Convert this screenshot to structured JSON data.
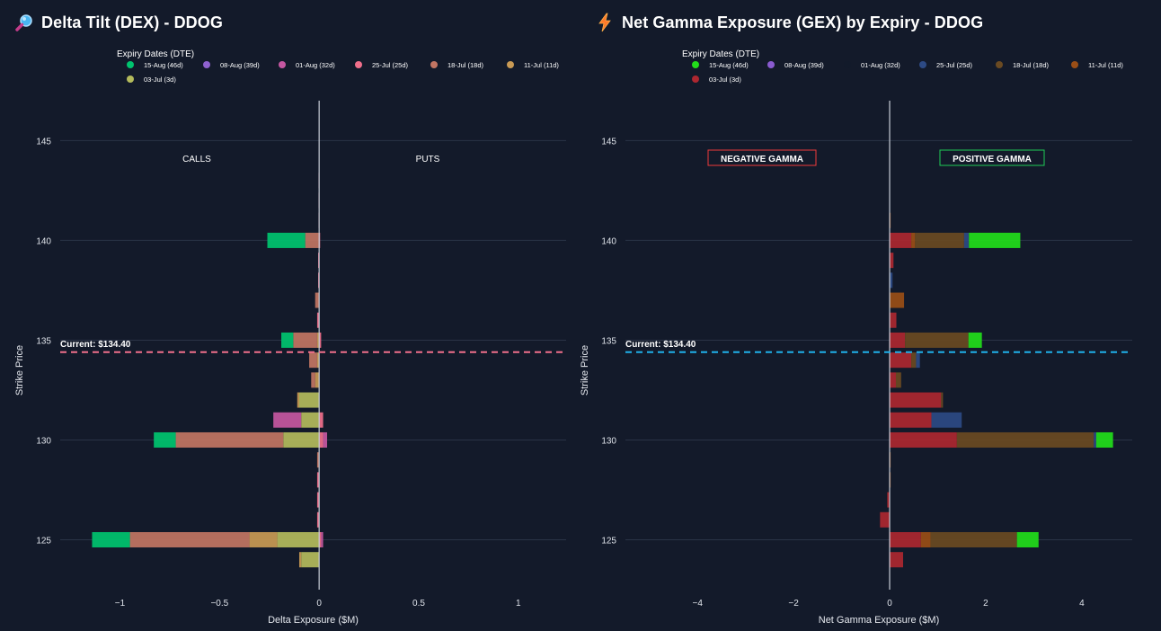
{
  "panels": {
    "dex": {
      "title": "Delta Tilt (DEX) - DDOG",
      "icon": "magnifier-icon"
    },
    "gex": {
      "title": "Net Gamma Exposure (GEX) by Expiry - DDOG",
      "icon": "lightning-icon"
    }
  },
  "chart_data": [
    {
      "type": "bar",
      "orientation": "horizontal",
      "stacked": true,
      "title": "Delta Tilt (DEX) - DDOG",
      "xlabel": "Delta Exposure ($M)",
      "ylabel": "Strike Price",
      "xlim": [
        -1.3,
        1.24
      ],
      "ylim": [
        122.5,
        147
      ],
      "xticks": [
        -1,
        -0.5,
        0,
        0.5,
        1
      ],
      "xtick_labels": [
        "−1",
        "−0.5",
        "0",
        "0.5",
        "1"
      ],
      "yticks": [
        125,
        130,
        135,
        140,
        145
      ],
      "legend_title": "Expiry Dates (DTE)",
      "legend_position": "top",
      "legend": [
        "15-Aug (46d)",
        "08-Aug (39d)",
        "01-Aug (32d)",
        "25-Jul (25d)",
        "18-Jul (18d)",
        "11-Jul (11d)",
        "03-Jul (3d)"
      ],
      "colors": {
        "15-Aug (46d)": "#00c46f",
        "08-Aug (39d)": "#8f62cf",
        "01-Aug (32d)": "#c557a1",
        "25-Jul (25d)": "#f06f8b",
        "18-Jul (18d)": "#c27563",
        "11-Jul (11d)": "#c99a54",
        "03-Jul (3d)": "#b4bb5c"
      },
      "annotations": [
        "CALLS",
        "PUTS"
      ],
      "current_price_label": "Current: $134.40",
      "current_price": 134.4,
      "current_line_color": "#f06f8b",
      "strikes": [
        {
          "strike": 124.0,
          "values": {
            "03-Jul (3d)": -0.09,
            "11-Jul (11d)": -0.01
          }
        },
        {
          "strike": 125.0,
          "values": {
            "15-Aug (46d)": -0.19,
            "18-Jul (18d)": -0.6,
            "11-Jul (11d)": -0.14,
            "03-Jul (3d)": -0.21,
            "25-Jul (25d)": 0.01,
            "01-Aug (32d)": 0.01
          }
        },
        {
          "strike": 126.0,
          "values": {
            "25-Jul (25d)": -0.01
          }
        },
        {
          "strike": 127.0,
          "values": {
            "25-Jul (25d)": -0.01
          }
        },
        {
          "strike": 128.0,
          "values": {
            "25-Jul (25d)": -0.01
          }
        },
        {
          "strike": 129.0,
          "values": {
            "18-Jul (18d)": -0.01
          }
        },
        {
          "strike": 130.0,
          "values": {
            "15-Aug (46d)": -0.11,
            "18-Jul (18d)": -0.54,
            "03-Jul (3d)": -0.18,
            "25-Jul (25d)": 0.02,
            "01-Aug (32d)": 0.02
          }
        },
        {
          "strike": 131.0,
          "values": {
            "01-Aug (32d)": -0.14,
            "03-Jul (3d)": -0.09,
            "25-Jul (25d)": 0.02
          }
        },
        {
          "strike": 132.0,
          "values": {
            "03-Jul (3d)": -0.1,
            "11-Jul (11d)": -0.01
          }
        },
        {
          "strike": 133.0,
          "values": {
            "18-Jul (18d)": -0.02,
            "11-Jul (11d)": -0.02
          }
        },
        {
          "strike": 134.0,
          "values": {
            "18-Jul (18d)": -0.04,
            "11-Jul (11d)": -0.01
          }
        },
        {
          "strike": 135.0,
          "values": {
            "15-Aug (46d)": -0.06,
            "18-Jul (18d)": -0.12,
            "11-Jul (11d)": -0.01,
            "25-Jul (25d)": 0.01
          }
        },
        {
          "strike": 136.0,
          "values": {
            "25-Jul (25d)": -0.01
          }
        },
        {
          "strike": 137.0,
          "values": {
            "18-Jul (18d)": -0.02
          }
        },
        {
          "strike": 138.0,
          "values": {
            "25-Jul (25d)": -0.005
          }
        },
        {
          "strike": 139.0,
          "values": {
            "25-Jul (25d)": -0.005
          }
        },
        {
          "strike": 140.0,
          "values": {
            "15-Aug (46d)": -0.19,
            "18-Jul (18d)": -0.07,
            "25-Jul (25d)": 0.005
          }
        },
        {
          "strike": 141.0,
          "values": {
            "25-Jul (25d)": -0.003
          }
        },
        {
          "strike": 142.0,
          "values": {
            "25-Jul (25d)": -0.003
          }
        },
        {
          "strike": 143.0,
          "values": {
            "25-Jul (25d)": -0.003
          }
        }
      ]
    },
    {
      "type": "bar",
      "orientation": "horizontal",
      "stacked": true,
      "title": "Net Gamma Exposure (GEX) by Expiry - DDOG",
      "xlabel": "Net Gamma Exposure ($M)",
      "ylabel": "Strike Price",
      "xlim": [
        -5.5,
        5.05
      ],
      "ylim": [
        122.5,
        147
      ],
      "xticks": [
        -4,
        -2,
        0,
        2,
        4
      ],
      "xtick_labels": [
        "−4",
        "−2",
        "0",
        "2",
        "4"
      ],
      "yticks": [
        125,
        130,
        135,
        140,
        145
      ],
      "legend_title": "Expiry Dates (DTE)",
      "legend_position": "top",
      "legend": [
        "15-Aug (46d)",
        "08-Aug (39d)",
        "01-Aug (32d)",
        "25-Jul (25d)",
        "18-Jul (18d)",
        "11-Jul (11d)",
        "03-Jul (3d)"
      ],
      "colors": {
        "15-Aug (46d)": "#22dd1a",
        "08-Aug (39d)": "#8a5bd0",
        "01-Aug (32d)": "#121a2a",
        "25-Jul (25d)": "#2d4a84",
        "18-Jul (18d)": "#6a4a22",
        "11-Jul (11d)": "#9a4e16",
        "03-Jul (3d)": "#ad2730"
      },
      "annotations": [
        "NEGATIVE GAMMA",
        "POSITIVE GAMMA"
      ],
      "annotation_colors": [
        "#ef3b3b",
        "#1fcc55"
      ],
      "current_price_label": "Current: $134.40",
      "current_price": 134.4,
      "current_line_color": "#1fb0ea",
      "strikes": [
        {
          "strike": 124.0,
          "values": {
            "03-Jul (3d)": 0.28
          }
        },
        {
          "strike": 125.0,
          "values": {
            "03-Jul (3d)": 0.65,
            "11-Jul (11d)": 0.2,
            "18-Jul (18d)": 1.8,
            "15-Aug (46d)": 0.45
          }
        },
        {
          "strike": 126.0,
          "values": {
            "03-Jul (3d)": -0.2
          }
        },
        {
          "strike": 127.0,
          "values": {
            "03-Jul (3d)": -0.05
          }
        },
        {
          "strike": 128.0,
          "values": {
            "11-Jul (11d)": 0.02
          }
        },
        {
          "strike": 129.0,
          "values": {
            "11-Jul (11d)": 0.02
          }
        },
        {
          "strike": 130.0,
          "values": {
            "03-Jul (3d)": 1.4,
            "18-Jul (18d)": 2.85,
            "25-Jul (25d)": 0.05,
            "15-Aug (46d)": 0.35
          }
        },
        {
          "strike": 131.0,
          "values": {
            "03-Jul (3d)": 0.87,
            "25-Jul (25d)": 0.63
          }
        },
        {
          "strike": 132.0,
          "values": {
            "03-Jul (3d)": 1.07,
            "18-Jul (18d)": 0.04
          }
        },
        {
          "strike": 133.0,
          "values": {
            "03-Jul (3d)": 0.13,
            "18-Jul (18d)": 0.11
          }
        },
        {
          "strike": 134.0,
          "values": {
            "03-Jul (3d)": 0.45,
            "18-Jul (18d)": 0.1,
            "25-Jul (25d)": 0.08
          }
        },
        {
          "strike": 135.0,
          "values": {
            "03-Jul (3d)": 0.32,
            "18-Jul (18d)": 1.32,
            "15-Aug (46d)": 0.28
          }
        },
        {
          "strike": 136.0,
          "values": {
            "03-Jul (3d)": 0.14
          }
        },
        {
          "strike": 137.0,
          "values": {
            "11-Jul (11d)": 0.3
          }
        },
        {
          "strike": 138.0,
          "values": {
            "25-Jul (25d)": 0.06
          }
        },
        {
          "strike": 139.0,
          "values": {
            "03-Jul (3d)": 0.08
          }
        },
        {
          "strike": 140.0,
          "values": {
            "03-Jul (3d)": 0.45,
            "11-Jul (11d)": 0.08,
            "18-Jul (18d)": 1.02,
            "25-Jul (25d)": 0.1,
            "15-Aug (46d)": 1.07
          }
        },
        {
          "strike": 141.0,
          "values": {
            "11-Jul (11d)": 0.02
          }
        }
      ]
    }
  ]
}
